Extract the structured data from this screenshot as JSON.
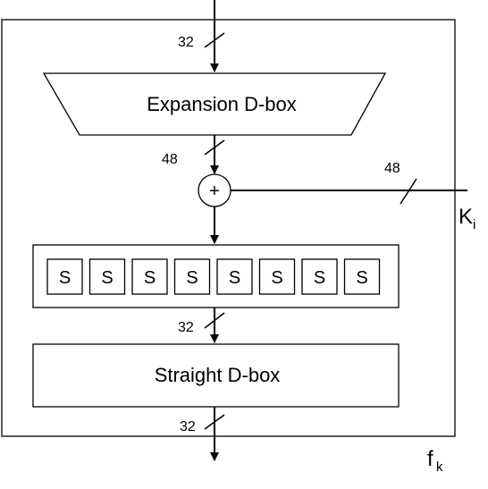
{
  "diagram": {
    "expansion_box_label": "Expansion D-box",
    "straight_box_label": "Straight D-box",
    "xor_symbol": "+",
    "s_boxes": [
      "S",
      "S",
      "S",
      "S",
      "S",
      "S",
      "S",
      "S"
    ],
    "bits_input": "32",
    "bits_after_expansion": "48",
    "bits_key": "48",
    "bits_after_sbox": "32",
    "bits_output": "32",
    "key_label": "K",
    "key_subscript": "i",
    "function_label": "f",
    "function_subscript": "k"
  }
}
